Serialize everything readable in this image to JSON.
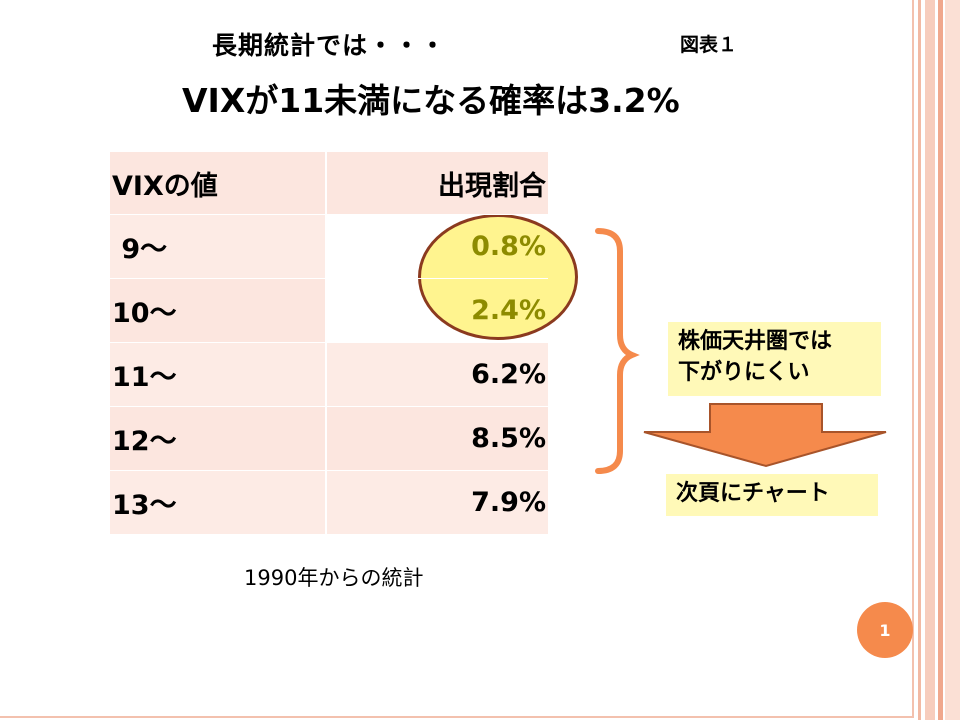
{
  "slide": {
    "subtitle": "長期統計では・・・",
    "figure_label": "図表１",
    "title": "VIXが11未満になる確率は3.2%",
    "source_note": "1990年からの統計",
    "page_number": "1"
  },
  "table": {
    "headers": [
      "VIXの値",
      "出現割合"
    ],
    "rows": [
      {
        "vix": " 9～",
        "ratio": "0.8%"
      },
      {
        "vix": "10～",
        "ratio": "2.4%"
      },
      {
        "vix": "11～",
        "ratio": "6.2%"
      },
      {
        "vix": "12～",
        "ratio": "8.5%"
      },
      {
        "vix": "13～",
        "ratio": "7.9%"
      }
    ]
  },
  "callout": {
    "line1": "株価天井圏では",
    "line2": "下がりにくい",
    "next": "次頁にチャート"
  },
  "colors": {
    "accent_orange": "#f58a4c",
    "highlight_yellow": "#fff48f",
    "table_bg": "#fdebe5",
    "highlight_text": "#8d8b00"
  }
}
